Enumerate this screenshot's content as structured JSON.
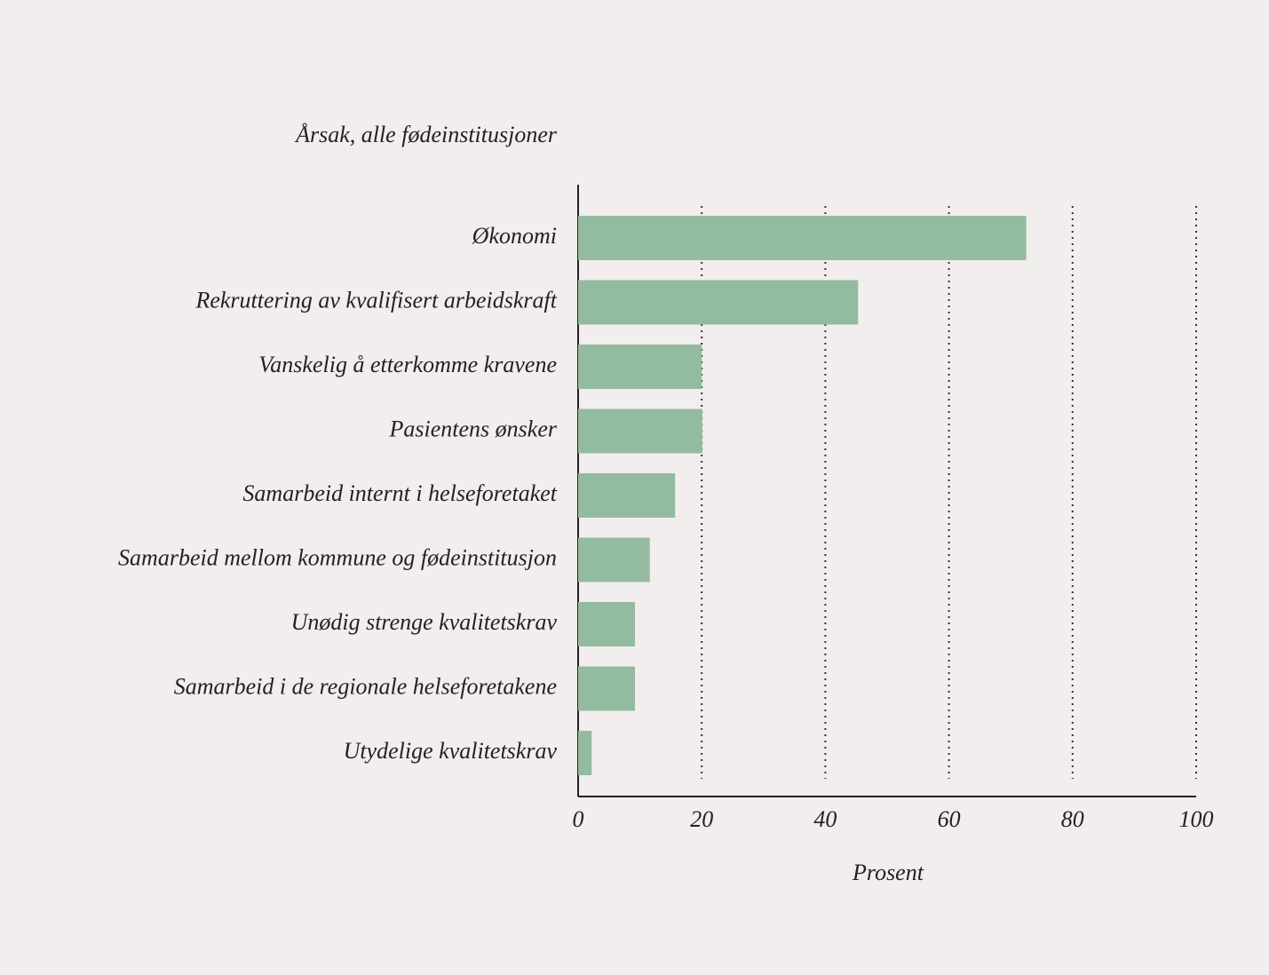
{
  "chart_data": {
    "type": "bar",
    "orientation": "horizontal",
    "y_label": "Årsak, alle fødeinstitusjoner",
    "x_label": "Prosent",
    "categories": [
      "Økonomi",
      "Rekruttering av kvalifisert arbeidskraft",
      "Vanskelig å etterkomme kravene",
      "Pasientens ønsker",
      "Samarbeid internt i helseforetaket",
      "Samarbeid mellom kommune og fødeinstitusjon",
      "Unødig strenge kvalitetskrav",
      "Samarbeid i de regionale helseforetakene",
      "Utydelige kvalitetskrav"
    ],
    "values": [
      72.5,
      45.3,
      20.0,
      20.1,
      15.7,
      11.6,
      9.2,
      9.2,
      2.2
    ],
    "color": "#93bba0",
    "xlim": [
      0,
      100
    ],
    "xticks": [
      0,
      20,
      40,
      60,
      80,
      100
    ],
    "grid": true
  }
}
